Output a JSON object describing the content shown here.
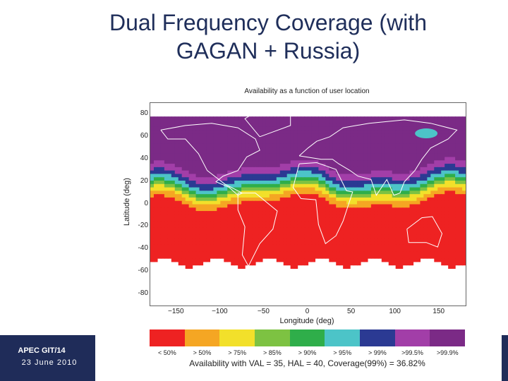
{
  "slide": {
    "title_line1": "Dual Frequency Coverage (with",
    "title_line2": "GAGAN + Russia)"
  },
  "footer": {
    "code": "APEC GIT/14",
    "date": "23 June 2010",
    "bar_color": "#1f2c59"
  },
  "chart_data": {
    "type": "heatmap",
    "title": "Availability as a function of user location",
    "xlabel": "Longitude (deg)",
    "ylabel": "Latitude (deg)",
    "xlim": [
      -180,
      180
    ],
    "ylim": [
      -90,
      90
    ],
    "x_ticks": [
      -150,
      -100,
      -50,
      0,
      50,
      100,
      150
    ],
    "y_ticks": [
      80,
      60,
      40,
      20,
      0,
      -20,
      -40,
      -60,
      -80
    ],
    "legend": [
      {
        "label": "< 50%",
        "color": "#ee2222"
      },
      {
        "label": "> 50%",
        "color": "#f5a623"
      },
      {
        "label": "> 75%",
        "color": "#f2e02a"
      },
      {
        "label": "> 85%",
        "color": "#7dc242"
      },
      {
        "label": "> 90%",
        "color": "#2fae4a"
      },
      {
        "label": "> 95%",
        "color": "#4cc4c8"
      },
      {
        "label": "> 99%",
        "color": "#2b3a93"
      },
      {
        "label": ">99.5%",
        "color": "#a23ea8"
      },
      {
        "label": ">99.9%",
        "color": "#7b2a86"
      }
    ],
    "caption": "Availability with VAL = 35, HAL = 40, Coverage(99%) = 36.82%"
  }
}
